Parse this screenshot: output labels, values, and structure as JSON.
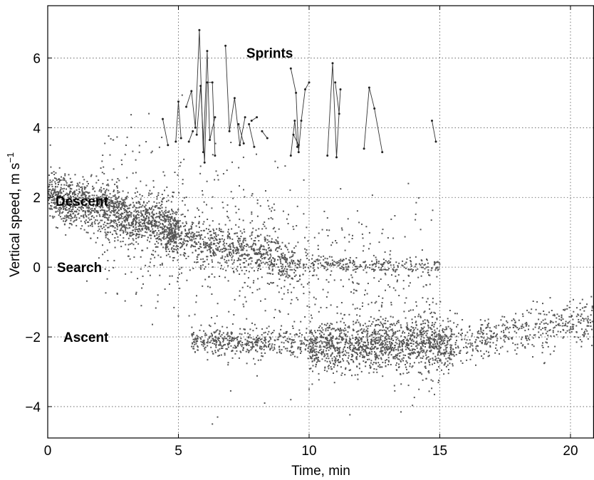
{
  "chart_data": {
    "type": "scatter",
    "title": "",
    "xlabel": "Time, min",
    "ylabel_main": "Vertical speed, m s",
    "ylabel_sup": "−1",
    "xlim": [
      0,
      20.9
    ],
    "ylim": [
      -4.9,
      7.5
    ],
    "xticks": [
      0,
      5,
      10,
      15,
      20
    ],
    "yticks": [
      -4,
      -2,
      0,
      2,
      4,
      6
    ],
    "xtick_labels": [
      "0",
      "5",
      "10",
      "15",
      "20"
    ],
    "ytick_labels": [
      "−4",
      "−2",
      "0",
      "2",
      "4",
      "6"
    ],
    "grid": true,
    "legend": "none",
    "annotations": [
      {
        "text": "Sprints",
        "x": 7.6,
        "y": 6.15
      },
      {
        "text": "Descent",
        "x": 0.3,
        "y": 1.9
      },
      {
        "text": "Search",
        "x": 0.35,
        "y": 0.0
      },
      {
        "text": "Ascent",
        "x": 0.6,
        "y": -2.0
      }
    ],
    "series": [
      {
        "kind": "points",
        "clusters": [
          {
            "x": [
              0.0,
              5.0
            ],
            "y": [
              2.1,
              1.0
            ],
            "spread": 0.35,
            "count": 1400
          },
          {
            "x": [
              4.5,
              9.5
            ],
            "y": [
              1.0,
              0.1
            ],
            "spread": 0.3,
            "count": 700
          },
          {
            "x": [
              9.5,
              15.0
            ],
            "y": [
              0.1,
              0.0
            ],
            "spread": 0.12,
            "count": 250
          },
          {
            "x": [
              5.5,
              10.0
            ],
            "y": [
              -2.1,
              -2.2
            ],
            "spread": 0.2,
            "count": 450
          },
          {
            "x": [
              10.0,
              15.5
            ],
            "y": [
              -2.3,
              -2.2
            ],
            "spread": 0.35,
            "count": 1300
          },
          {
            "x": [
              15.5,
              20.9
            ],
            "y": [
              -2.2,
              -1.5
            ],
            "spread": 0.3,
            "count": 450
          },
          {
            "x": [
              2.0,
              15.0
            ],
            "y": [
              1.8,
              -1.6
            ],
            "spread": 1.2,
            "count": 900
          }
        ],
        "outliers": [
          [
            0.1,
            3.5
          ],
          [
            2.5,
            3.65
          ],
          [
            3.6,
            -0.6
          ],
          [
            1.5,
            -0.4
          ],
          [
            6.5,
            -4.3
          ],
          [
            7.0,
            -3.55
          ],
          [
            9.3,
            -3.8
          ],
          [
            10.0,
            -3.5
          ],
          [
            8.3,
            -3.9
          ],
          [
            6.9,
            -2.8
          ],
          [
            5.9,
            -2.0
          ],
          [
            6.3,
            -4.5
          ],
          [
            13.8,
            2.4
          ],
          [
            14.1,
            1.85
          ],
          [
            9.8,
            2.5
          ]
        ]
      },
      {
        "kind": "sprints",
        "paths": [
          [
            [
              4.4,
              4.25
            ],
            [
              4.6,
              3.5
            ]
          ],
          [
            [
              4.9,
              3.6
            ],
            [
              5.0,
              4.75
            ],
            [
              5.1,
              3.7
            ]
          ],
          [
            [
              5.3,
              4.6
            ],
            [
              5.5,
              5.05
            ],
            [
              5.65,
              4.0
            ],
            [
              5.8,
              6.8
            ],
            [
              5.95,
              3.3
            ],
            [
              6.1,
              6.2
            ],
            [
              6.2,
              3.65
            ],
            [
              6.4,
              4.3
            ]
          ],
          [
            [
              5.4,
              3.6
            ],
            [
              5.55,
              3.9
            ]
          ],
          [
            [
              5.7,
              3.8
            ],
            [
              5.85,
              5.2
            ],
            [
              6.0,
              3.0
            ],
            [
              6.1,
              5.3
            ],
            [
              6.3,
              5.3
            ],
            [
              6.4,
              3.2
            ]
          ],
          [
            [
              6.8,
              6.35
            ],
            [
              6.95,
              3.9
            ],
            [
              7.15,
              4.85
            ],
            [
              7.35,
              3.5
            ],
            [
              7.55,
              4.3
            ]
          ],
          [
            [
              7.3,
              4.1
            ],
            [
              7.5,
              3.55
            ]
          ],
          [
            [
              7.7,
              4.1
            ],
            [
              7.9,
              3.45
            ]
          ],
          [
            [
              7.8,
              4.2
            ],
            [
              8.0,
              4.3
            ]
          ],
          [
            [
              8.2,
              3.9
            ],
            [
              8.4,
              3.7
            ]
          ],
          [
            [
              9.3,
              5.7
            ],
            [
              9.5,
              5.0
            ],
            [
              9.6,
              3.3
            ],
            [
              9.7,
              4.2
            ],
            [
              9.85,
              5.1
            ],
            [
              10.0,
              5.3
            ]
          ],
          [
            [
              9.3,
              3.2
            ],
            [
              9.45,
              4.2
            ],
            [
              9.55,
              3.45
            ]
          ],
          [
            [
              9.4,
              3.8
            ],
            [
              9.6,
              3.5
            ]
          ],
          [
            [
              10.7,
              3.2
            ],
            [
              10.9,
              5.85
            ],
            [
              11.05,
              3.15
            ],
            [
              11.2,
              5.1
            ]
          ],
          [
            [
              11.0,
              5.3
            ],
            [
              11.15,
              4.4
            ]
          ],
          [
            [
              12.1,
              3.4
            ],
            [
              12.3,
              5.15
            ],
            [
              12.5,
              4.55
            ],
            [
              12.8,
              3.3
            ]
          ],
          [
            [
              14.7,
              4.2
            ],
            [
              14.85,
              3.6
            ]
          ]
        ]
      }
    ]
  }
}
